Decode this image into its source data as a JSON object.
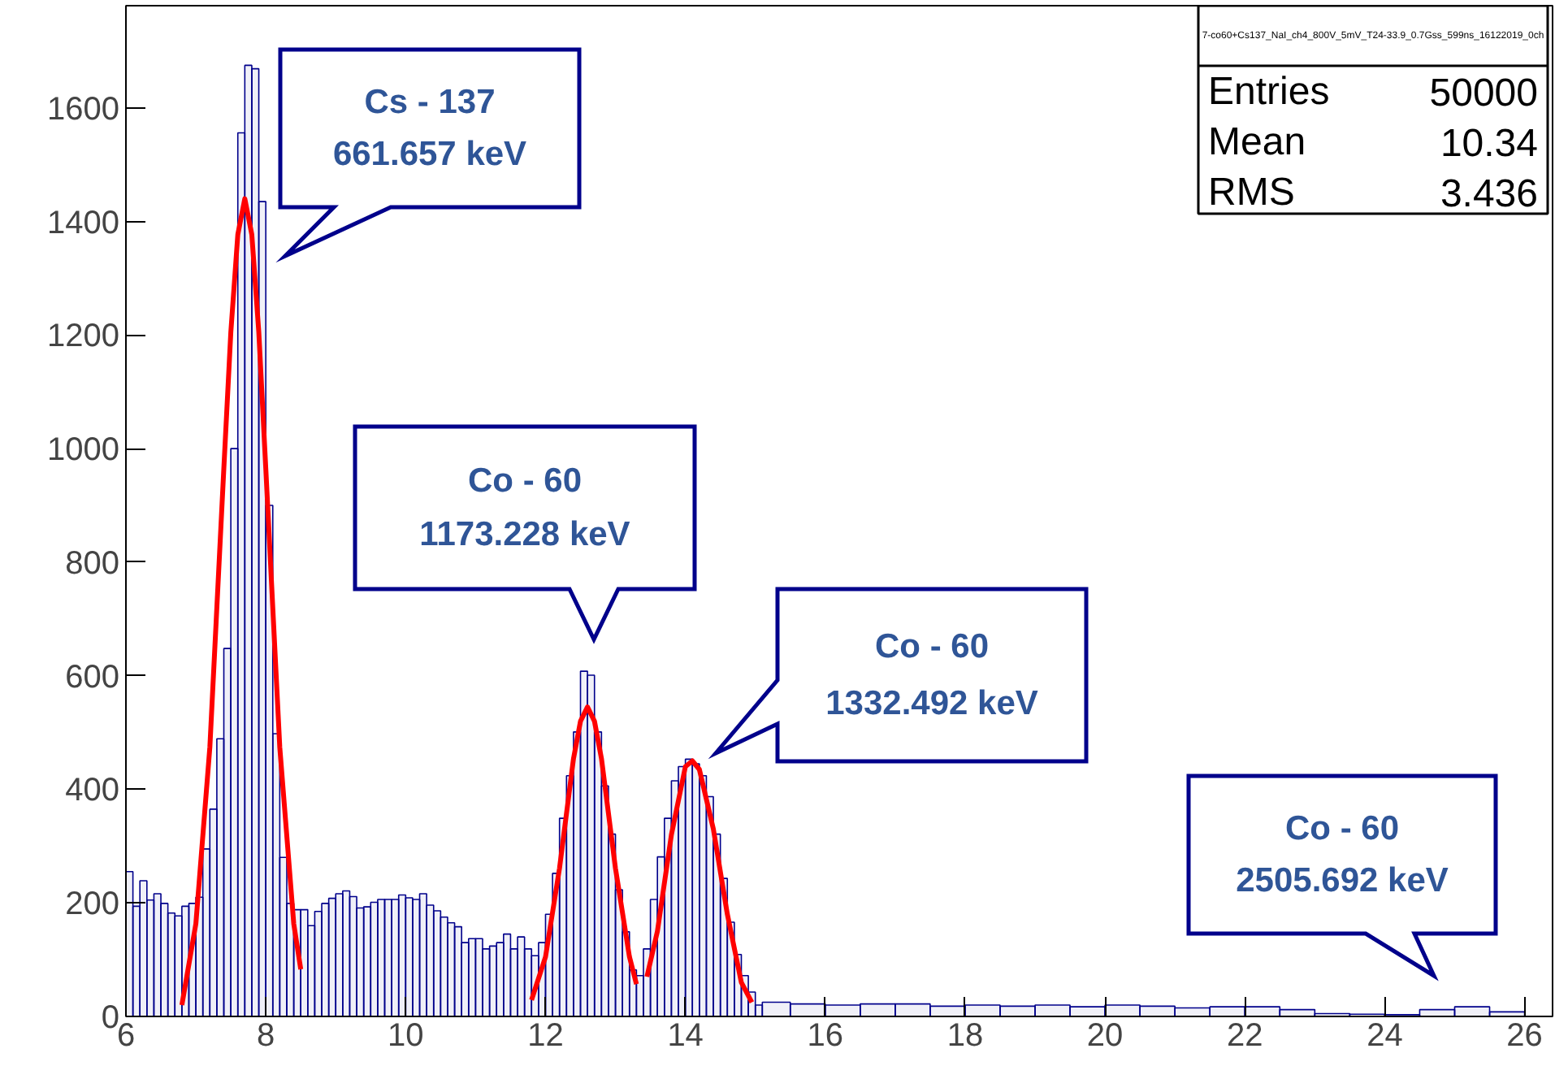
{
  "chart_data": {
    "type": "histogram",
    "xlim": [
      6,
      26.4
    ],
    "ylim": [
      0,
      1780
    ],
    "xticks": [
      6,
      8,
      10,
      12,
      14,
      16,
      18,
      20,
      22,
      24,
      26
    ],
    "yticks": [
      0,
      200,
      400,
      600,
      800,
      1000,
      1200,
      1400,
      1600
    ],
    "grid": false,
    "series": [
      {
        "type": "histogram",
        "color": "#00008b",
        "bins": [
          6.0,
          6.1,
          6.2,
          6.3,
          6.4,
          6.5,
          6.6,
          6.7,
          6.8,
          6.9,
          7.0,
          7.1,
          7.2,
          7.3,
          7.4,
          7.5,
          7.6,
          7.7,
          7.8,
          7.9,
          8.0,
          8.1,
          8.2,
          8.3,
          8.4,
          8.5,
          8.6,
          8.7,
          8.8,
          8.9,
          9.0,
          9.1,
          9.2,
          9.3,
          9.4,
          9.5,
          9.6,
          9.7,
          9.8,
          9.9,
          10.0,
          10.1,
          10.2,
          10.3,
          10.4,
          10.5,
          10.6,
          10.7,
          10.8,
          10.9,
          11.0,
          11.1,
          11.2,
          11.3,
          11.4,
          11.5,
          11.6,
          11.7,
          11.8,
          11.9,
          12.0,
          12.1,
          12.2,
          12.3,
          12.4,
          12.5,
          12.6,
          12.7,
          12.8,
          12.9,
          13.0,
          13.1,
          13.2,
          13.3,
          13.4,
          13.5,
          13.6,
          13.7,
          13.8,
          13.9,
          14.0,
          14.1,
          14.2,
          14.3,
          14.4,
          14.5,
          14.6,
          14.7,
          14.8,
          14.9,
          15.0,
          15.1,
          15.5,
          16.0,
          16.5,
          17.0,
          17.5,
          18.0,
          18.5,
          19.0,
          19.5,
          20.0,
          20.5,
          21.0,
          21.5,
          22.0,
          22.5,
          23.0,
          23.5,
          24.0,
          24.5,
          25.0,
          25.5,
          26.0
        ],
        "values": [
          255,
          194,
          239,
          205,
          216,
          199,
          182,
          177,
          194,
          199,
          210,
          295,
          365,
          489,
          648,
          1000,
          1556,
          1675,
          1669,
          1435,
          900,
          498,
          280,
          199,
          188,
          188,
          160,
          185,
          199,
          208,
          216,
          221,
          211,
          191,
          193,
          201,
          206,
          206,
          206,
          214,
          209,
          206,
          216,
          196,
          186,
          175,
          165,
          158,
          130,
          137,
          137,
          119,
          124,
          130,
          145,
          119,
          140,
          119,
          107,
          130,
          180,
          252,
          349,
          424,
          501,
          608,
          601,
          501,
          406,
          321,
          223,
          149,
          82,
          72,
          119,
          206,
          281,
          349,
          415,
          440,
          453,
          445,
          424,
          387,
          321,
          243,
          166,
          109,
          72,
          43,
          20,
          25,
          22,
          20,
          22,
          22,
          18,
          20,
          18,
          20,
          17,
          20,
          18,
          15,
          17,
          17,
          12,
          5,
          4,
          3,
          12,
          17,
          8
        ]
      },
      {
        "type": "line",
        "color": "#ff0000",
        "x": [
          6.8,
          7.0,
          7.2,
          7.4,
          7.5,
          7.6,
          7.7,
          7.8,
          7.9,
          8.0,
          8.2,
          8.4,
          8.5
        ],
        "values": [
          20,
          163,
          474,
          965,
          1205,
          1377,
          1440,
          1377,
          1205,
          965,
          474,
          163,
          83
        ]
      },
      {
        "type": "line",
        "color": "#ff0000",
        "x": [
          11.8,
          12.0,
          12.2,
          12.4,
          12.5,
          12.6,
          12.7,
          12.8,
          13.0,
          13.2,
          13.3
        ],
        "values": [
          29,
          105,
          261,
          454,
          520,
          545,
          520,
          454,
          261,
          105,
          57
        ]
      },
      {
        "type": "line",
        "color": "#ff0000",
        "x": [
          13.45,
          13.6,
          13.8,
          14.0,
          14.1,
          14.2,
          14.4,
          14.6,
          14.8,
          14.95
        ],
        "values": [
          70,
          150,
          320,
          440,
          450,
          435,
          330,
          180,
          60,
          25
        ]
      }
    ],
    "annotations": [
      "Cs - 137\n661.657 keV",
      "Co - 60\n1173.228 keV",
      "Co - 60\n1332.492 keV",
      "Co - 60\n2505.692 keV",
      "7-co60+Cs137_NaI_ch4_800V_5mV_T24-33.9_0.7Gss_599ns_16122019_0ch",
      "Entries",
      "50000",
      "Mean",
      "10.34",
      "RMS",
      "3.436"
    ]
  }
}
